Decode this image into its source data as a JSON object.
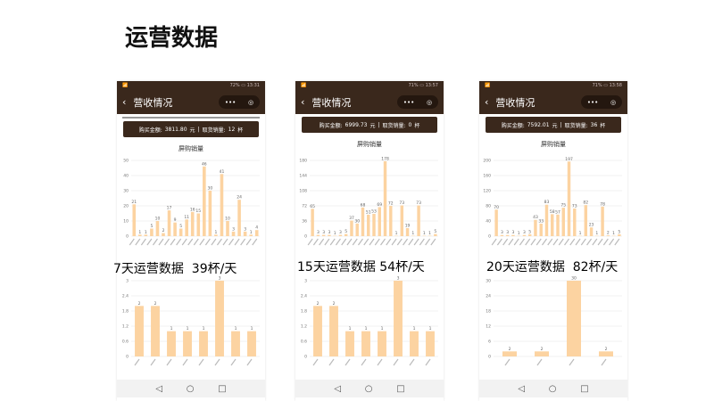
{
  "slide_title": "运营数据",
  "phones": [
    {
      "status_left": "📶",
      "status_right": "72% ▭ 13:31",
      "header_title": "营收情况",
      "back_icon": "‹",
      "more_icon": "•••",
      "target_icon": "◎",
      "amount_label": "购买金额:",
      "amount": "3811.80",
      "amount_unit": "元",
      "divider": "|",
      "sales_label": "取货销量:",
      "sales": "12",
      "sales_unit": "杯",
      "caption": "7天运营数据  39杯/天",
      "chart_title": "屏购销量"
    },
    {
      "status_left": "📶",
      "status_right": "71% ▭ 13:57",
      "header_title": "营收情况",
      "back_icon": "‹",
      "more_icon": "•••",
      "target_icon": "◎",
      "amount_label": "购买金额:",
      "amount": "6999.73",
      "amount_unit": "元",
      "divider": "|",
      "sales_label": "取货销量:",
      "sales": "0",
      "sales_unit": "杯",
      "caption": "15天运营数据 54杯/天",
      "chart_title": "屏购销量"
    },
    {
      "status_left": "📶",
      "status_right": "71% ▭ 13:58",
      "header_title": "营收情况",
      "back_icon": "‹",
      "more_icon": "•••",
      "target_icon": "◎",
      "amount_label": "购买金额:",
      "amount": "7592.01",
      "amount_unit": "元",
      "divider": "|",
      "sales_label": "取货销量:",
      "sales": "36",
      "sales_unit": "杯",
      "caption": "20天运营数据  82杯/天",
      "chart_title": "屏购销量"
    }
  ],
  "nav": {
    "back": "◁",
    "home": "○",
    "recent": "□"
  },
  "colors": {
    "bar": "#fcd3a1",
    "header": "#3a281c"
  },
  "chart_data": [
    {
      "type": "bar",
      "title": "屏购销量",
      "ylim": [
        0,
        50
      ],
      "yticks": [
        0,
        10,
        20,
        30,
        40,
        50
      ],
      "values": [
        21,
        1,
        1,
        5,
        10,
        2,
        17,
        9,
        5,
        11,
        16,
        15,
        46,
        30,
        1,
        41,
        10,
        3,
        24,
        3,
        1,
        4
      ]
    },
    {
      "type": "bar",
      "ylim": [
        0,
        3
      ],
      "yticks": [
        "0",
        "0.6",
        "1.2",
        "1.8",
        "2.4",
        "3"
      ],
      "values": [
        2,
        2,
        1,
        1,
        1,
        3,
        1,
        1
      ]
    },
    {
      "type": "bar",
      "title": "屏购销量",
      "ylim": [
        0,
        180
      ],
      "yticks": [
        0,
        36,
        72,
        108,
        144,
        180
      ],
      "values": [
        65,
        3,
        3,
        3,
        1,
        3,
        5,
        37,
        30,
        68,
        51,
        53,
        69,
        178,
        72,
        1,
        73,
        19,
        1,
        73,
        1,
        1,
        5
      ]
    },
    {
      "type": "bar",
      "ylim": [
        0,
        3
      ],
      "yticks": [
        "0",
        "0.6",
        "1.2",
        "1.8",
        "2.4",
        "3"
      ],
      "values": [
        2,
        2,
        1,
        1,
        1,
        3,
        1,
        1
      ]
    },
    {
      "type": "bar",
      "title": "屏购销量",
      "ylim": [
        0,
        200
      ],
      "yticks": [
        0,
        40,
        80,
        120,
        160,
        200
      ],
      "values": [
        70,
        3,
        3,
        3,
        1,
        3,
        5,
        43,
        33,
        83,
        58,
        57,
        75,
        197,
        73,
        1,
        82,
        23,
        1,
        78,
        2,
        1,
        5
      ]
    },
    {
      "type": "bar",
      "ylim": [
        0,
        30
      ],
      "yticks": [
        0,
        6,
        12,
        18,
        24,
        30
      ],
      "values": [
        2,
        2,
        30,
        2
      ]
    }
  ]
}
